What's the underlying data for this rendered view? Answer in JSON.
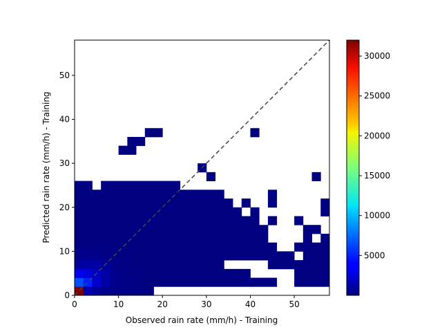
{
  "chart_data": {
    "type": "heatmap",
    "title": "",
    "xlabel": "Observed rain rate (mm/h) - Training",
    "ylabel": "Predicted rain rate (mm/h) - Training",
    "xlim": [
      0,
      58
    ],
    "ylim": [
      0,
      58
    ],
    "xticks": [
      0,
      10,
      20,
      30,
      40,
      50
    ],
    "yticks": [
      0,
      10,
      20,
      30,
      40,
      50
    ],
    "bin_size": 2,
    "colormap": "jet",
    "colorbar": {
      "min": 0,
      "max": 32000,
      "ticks": [
        5000,
        10000,
        15000,
        20000,
        25000,
        30000
      ]
    },
    "diagonal": {
      "style": "dashed",
      "color": "#444444",
      "from": [
        0,
        0
      ],
      "to": [
        58,
        58
      ]
    },
    "cells": [
      [
        0,
        0,
        32000
      ],
      [
        1,
        0,
        1500
      ],
      [
        2,
        0,
        800
      ],
      [
        3,
        0,
        500
      ],
      [
        4,
        0,
        300
      ],
      [
        5,
        0,
        200
      ],
      [
        6,
        0,
        150
      ],
      [
        7,
        0,
        100
      ],
      [
        0,
        1,
        6500
      ],
      [
        1,
        1,
        5000
      ],
      [
        2,
        1,
        2500
      ],
      [
        3,
        1,
        1200
      ],
      [
        4,
        1,
        500
      ],
      [
        5,
        1,
        300
      ],
      [
        6,
        1,
        200
      ],
      [
        7,
        1,
        100
      ],
      [
        0,
        2,
        3500
      ],
      [
        1,
        2,
        3000
      ],
      [
        2,
        2,
        2200
      ],
      [
        3,
        2,
        1100
      ],
      [
        4,
        2,
        500
      ],
      [
        5,
        2,
        200
      ],
      [
        6,
        2,
        100
      ],
      [
        0,
        3,
        1000
      ],
      [
        1,
        3,
        1200
      ],
      [
        2,
        3,
        1100
      ],
      [
        3,
        3,
        800
      ],
      [
        4,
        3,
        300
      ],
      [
        5,
        3,
        150
      ],
      [
        0,
        4,
        300
      ],
      [
        1,
        4,
        400
      ],
      [
        2,
        4,
        400
      ],
      [
        3,
        4,
        200
      ],
      [
        0,
        5,
        100
      ],
      [
        1,
        5,
        150
      ],
      [
        2,
        5,
        150
      ],
      [
        3,
        5,
        100
      ],
      [
        0,
        12,
        50
      ],
      [
        5,
        16,
        30
      ],
      [
        6,
        16,
        30
      ],
      [
        6,
        17,
        40
      ],
      [
        7,
        17,
        30
      ],
      [
        8,
        18,
        20
      ],
      [
        9,
        18,
        20
      ],
      [
        14,
        14,
        20
      ],
      [
        15,
        13,
        20
      ],
      [
        20,
        18,
        20
      ],
      [
        22,
        10,
        20
      ],
      [
        22,
        11,
        20
      ],
      [
        27,
        13,
        20
      ],
      [
        28,
        10,
        20
      ],
      [
        29,
        10,
        20
      ],
      [
        29,
        9,
        20
      ],
      [
        28,
        9,
        20
      ],
      [
        27,
        7,
        20
      ],
      [
        28,
        6,
        20
      ],
      [
        26,
        7,
        20
      ],
      [
        25,
        8,
        20
      ],
      [
        26,
        6,
        20
      ],
      [
        27,
        4,
        20
      ],
      [
        26,
        3,
        20
      ],
      [
        25,
        2,
        20
      ],
      [
        25,
        1,
        20
      ],
      [
        26,
        1,
        20
      ],
      [
        27,
        2,
        20
      ],
      [
        28,
        2,
        20
      ],
      [
        28,
        3,
        20
      ],
      [
        28,
        4,
        20
      ],
      [
        27,
        3,
        20
      ],
      [
        26,
        2,
        20
      ],
      [
        27,
        1,
        20
      ],
      [
        28,
        1,
        20
      ],
      [
        27,
        5,
        20
      ],
      [
        28,
        5,
        20
      ],
      [
        26,
        4,
        20
      ],
      [
        26,
        5,
        20
      ]
    ]
  }
}
